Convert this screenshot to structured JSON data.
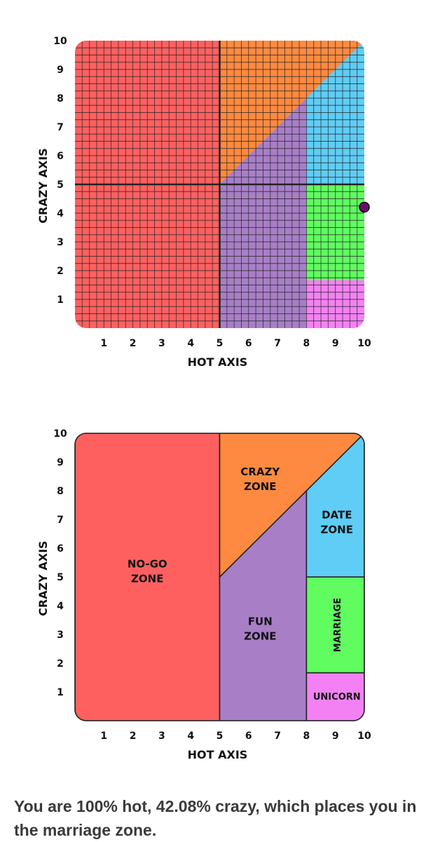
{
  "colors": {
    "no_go": "#fe6060",
    "crazy": "#fd8a40",
    "fun": "#a87fc7",
    "date": "#5fcdf6",
    "marriage": "#60fc60",
    "unicorn": "#f481f3",
    "marker": "#6a0e6e",
    "axis_line": "#222222",
    "grid_line": "#222222"
  },
  "chart_data": [
    {
      "type": "scatter",
      "xlabel": "HOT AXIS",
      "ylabel": "CRAZY AXIS",
      "xlim": [
        0,
        10
      ],
      "ylim": [
        0,
        10
      ],
      "xticks": [
        "1",
        "2",
        "3",
        "4",
        "5",
        "6",
        "7",
        "8",
        "9",
        "10"
      ],
      "yticks": [
        "1",
        "2",
        "3",
        "4",
        "5",
        "6",
        "7",
        "8",
        "9",
        "10"
      ],
      "grid": true,
      "point": {
        "x": 10,
        "y": 4.208
      }
    },
    {
      "type": "area",
      "xlabel": "HOT AXIS",
      "ylabel": "CRAZY AXIS",
      "xlim": [
        0,
        10
      ],
      "ylim": [
        0,
        10
      ],
      "xticks": [
        "1",
        "2",
        "3",
        "4",
        "5",
        "6",
        "7",
        "8",
        "9",
        "10"
      ],
      "yticks": [
        "1",
        "2",
        "3",
        "4",
        "5",
        "6",
        "7",
        "8",
        "9",
        "10"
      ],
      "grid": false,
      "zones": [
        {
          "key": "no_go",
          "label_lines": [
            "NO-GO",
            "ZONE"
          ],
          "polygon": [
            [
              0,
              0
            ],
            [
              5,
              0
            ],
            [
              5,
              10
            ],
            [
              0,
              10
            ]
          ],
          "label_at": [
            2.5,
            5.2
          ]
        },
        {
          "key": "crazy",
          "label_lines": [
            "CRAZY",
            "ZONE"
          ],
          "polygon": [
            [
              5,
              5
            ],
            [
              5,
              10
            ],
            [
              10,
              10
            ],
            [
              10,
              9.8
            ]
          ],
          "label_at": [
            6.4,
            8.4
          ]
        },
        {
          "key": "fun",
          "label_lines": [
            "FUN",
            "ZONE"
          ],
          "polygon": [
            [
              5,
              0
            ],
            [
              5,
              5
            ],
            [
              8,
              8
            ],
            [
              8,
              0
            ]
          ],
          "label_at": [
            6.4,
            3.2
          ]
        },
        {
          "key": "date",
          "label_lines": [
            "DATE",
            "ZONE"
          ],
          "polygon": [
            [
              8,
              5
            ],
            [
              8,
              8
            ],
            [
              10,
              10
            ],
            [
              10,
              5
            ]
          ],
          "label_at": [
            9.05,
            6.9
          ]
        },
        {
          "key": "marriage",
          "label_lines": [
            "MARRIAGE"
          ],
          "polygon": [
            [
              8,
              1.667
            ],
            [
              8,
              5
            ],
            [
              10,
              5
            ],
            [
              10,
              1.667
            ]
          ],
          "label_at": [
            9.05,
            3.33
          ],
          "vertical": true
        },
        {
          "key": "unicorn",
          "label_lines": [
            "UNICORN"
          ],
          "polygon": [
            [
              8,
              0
            ],
            [
              8,
              1.667
            ],
            [
              10,
              1.667
            ],
            [
              10,
              0
            ]
          ],
          "label_at": [
            9.05,
            0.85
          ]
        }
      ]
    }
  ],
  "result_text": "You are 100% hot, 42.08% crazy, which places you in the marriage zone."
}
